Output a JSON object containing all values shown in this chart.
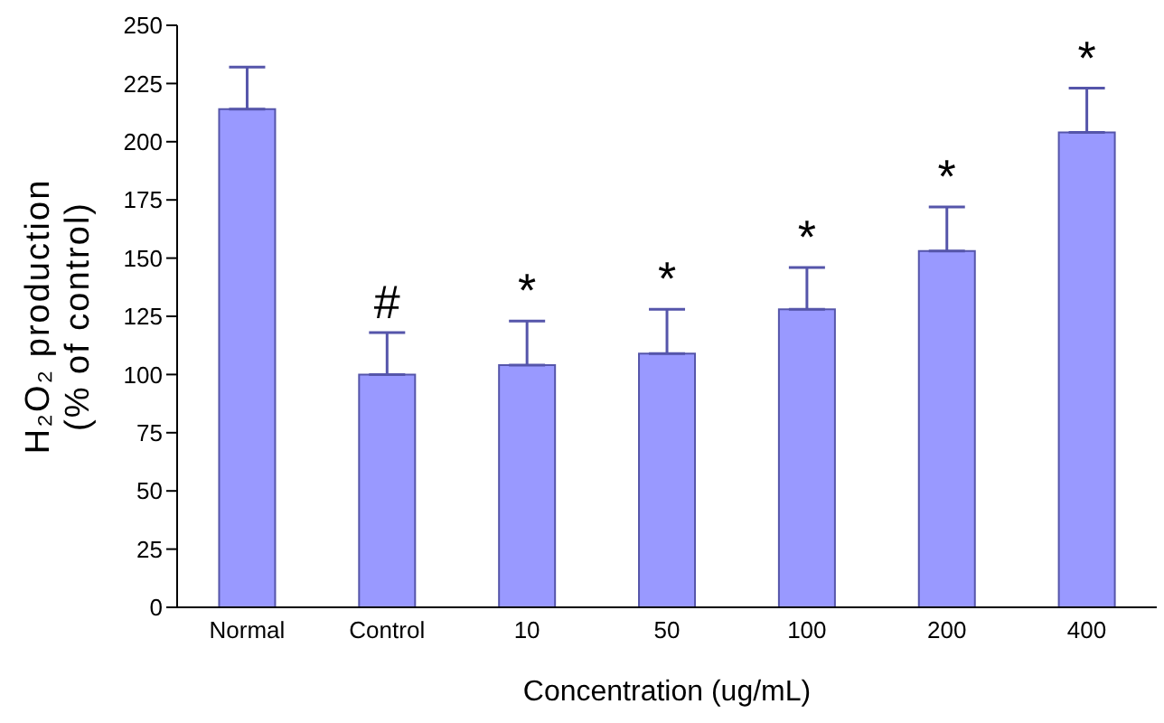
{
  "chart_data": {
    "type": "bar",
    "categories": [
      "Normal",
      "Control",
      "10",
      "50",
      "100",
      "200",
      "400"
    ],
    "values": [
      214,
      100,
      104,
      109,
      128,
      153,
      204
    ],
    "errors": [
      [
        214,
        232
      ],
      [
        100,
        118
      ],
      [
        104,
        123
      ],
      [
        109,
        128
      ],
      [
        128,
        146
      ],
      [
        153,
        172
      ],
      [
        204,
        223
      ]
    ],
    "color": "#9999ff",
    "xlabel": "Concentration (ug/mL)",
    "ylabel": "H₂O₂ production\n(% of control)",
    "ylim": [
      0,
      250
    ],
    "yticks": [
      0,
      25,
      50,
      75,
      100,
      125,
      150,
      175,
      200,
      225,
      250
    ],
    "grid": false,
    "legend": false,
    "annotations": [
      {
        "text": "#",
        "x": "Control",
        "y": 118
      },
      {
        "text": "*",
        "x": "10",
        "y": 123
      },
      {
        "text": "*",
        "x": "50",
        "y": 128
      },
      {
        "text": "*",
        "x": "100",
        "y": 146
      },
      {
        "text": "*",
        "x": "200",
        "y": 172
      },
      {
        "text": "*",
        "x": "400",
        "y": 223
      }
    ]
  }
}
